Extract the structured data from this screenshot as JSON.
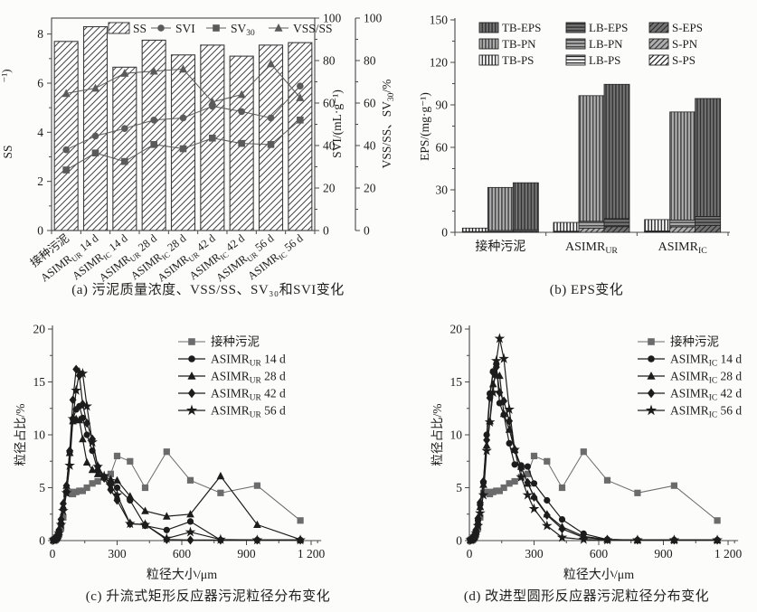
{
  "figure": {
    "captions": {
      "a": "(a) 污泥质量浓度、VSS/SS、SV₃₀和SVI变化",
      "b": "(b) EPS变化",
      "c": "(c) 升流式矩形反应器污泥粒径分布变化",
      "d": "(d) 改进型圆形反应器污泥粒径分布变化"
    },
    "colors": {
      "ink": "#1c1c1c",
      "frame": "#474747",
      "line_gray": "#5a5a5a",
      "seed_gray": "#6b6b6b"
    }
  },
  "chart_data": [
    {
      "id": "a",
      "type": "bar+line",
      "title": "(a) 污泥质量浓度、VSS/SS、SV₃₀和SVI变化",
      "ylabel_left_fragment_top": "⁻¹)",
      "ylabel_left_fragment": "SS",
      "axis_right1_label": "SVI/(mL·g⁻¹)",
      "axis_right2_label": [
        {
          "t": "VSS/SS、SV"
        },
        {
          "t": "30",
          "sub": true
        },
        {
          "t": "/%"
        }
      ],
      "ylim_left": [
        0,
        8.65
      ],
      "yticks_left": [
        0,
        2,
        4,
        6,
        8
      ],
      "ylim_right": [
        0,
        100
      ],
      "yticks_right": [
        0,
        20,
        40,
        60,
        80,
        100
      ],
      "categories": [
        [
          {
            "t": "接种污泥"
          }
        ],
        [
          {
            "t": "ASIMR"
          },
          {
            "t": "UR",
            "sub": true
          },
          {
            "t": " 14 d"
          }
        ],
        [
          {
            "t": "ASIMR"
          },
          {
            "t": "IC",
            "sub": true
          },
          {
            "t": " 14 d"
          }
        ],
        [
          {
            "t": "ASIMR"
          },
          {
            "t": "UR",
            "sub": true
          },
          {
            "t": " 28 d"
          }
        ],
        [
          {
            "t": "ASIMR"
          },
          {
            "t": "IC",
            "sub": true
          },
          {
            "t": " 28 d"
          }
        ],
        [
          {
            "t": "ASIMR"
          },
          {
            "t": "UR",
            "sub": true
          },
          {
            "t": " 42 d"
          }
        ],
        [
          {
            "t": "ASIMR"
          },
          {
            "t": "IC",
            "sub": true
          },
          {
            "t": " 42 d"
          }
        ],
        [
          {
            "t": "ASIMR"
          },
          {
            "t": "UR",
            "sub": true
          },
          {
            "t": " 56 d"
          }
        ],
        [
          {
            "t": "ASIMR"
          },
          {
            "t": "IC",
            "sub": true
          },
          {
            "t": " 56 d"
          }
        ]
      ],
      "bar_series": {
        "name": "SS",
        "unit": "g·L⁻¹",
        "values": [
          7.7,
          8.3,
          6.65,
          7.75,
          7.15,
          7.55,
          7.1,
          7.55,
          7.65
        ]
      },
      "line_series": [
        {
          "name": "SVI",
          "marker": "circle",
          "axis": "right",
          "values": [
            38,
            44.5,
            48,
            52,
            53,
            58.5,
            56,
            53,
            68
          ]
        },
        {
          "name": "SV30",
          "marker": "square",
          "axis": "right",
          "values": [
            28.5,
            36.5,
            32.5,
            40.5,
            38.5,
            43.5,
            41,
            40.5,
            52
          ]
        },
        {
          "name": "VSS/SS",
          "marker": "triangle",
          "axis": "right",
          "values": [
            64.5,
            67,
            74,
            75,
            76,
            60.5,
            64,
            78.5,
            62.5
          ]
        }
      ],
      "legend": [
        {
          "swatch": "hatch",
          "label": [
            {
              "t": "SS"
            }
          ]
        },
        {
          "swatch": "circle",
          "label": [
            {
              "t": "SVI"
            }
          ]
        },
        {
          "swatch": "square",
          "label": [
            {
              "t": "SV"
            },
            {
              "t": "30",
              "sub": true
            }
          ]
        },
        {
          "swatch": "triangle",
          "label": [
            {
              "t": "VSS/SS"
            }
          ]
        }
      ]
    },
    {
      "id": "b",
      "type": "stacked-bar",
      "title": "(b) EPS变化",
      "ylabel": "EPS/(mg·g⁻¹)",
      "ylim": [
        0,
        150
      ],
      "yticks": [
        0,
        30,
        60,
        90,
        120,
        150
      ],
      "legend_rows": [
        [
          "TB-EPS",
          "LB-EPS",
          "S-EPS"
        ],
        [
          "TB-PN",
          "LB-PN",
          "S-PN"
        ],
        [
          "TB-PS",
          "LB-PS",
          "S-PS"
        ]
      ],
      "categories": [
        [
          {
            "t": "接种污泥"
          }
        ],
        [
          {
            "t": "ASIMR"
          },
          {
            "t": "UR",
            "sub": true
          }
        ],
        [
          {
            "t": "ASIMR"
          },
          {
            "t": "IC",
            "sub": true
          }
        ]
      ],
      "groups": [
        {
          "bars": [
            {
              "family": "PS",
              "S": 0.2,
              "LB": 0.3,
              "TB": 2.5,
              "total": 3
            },
            {
              "family": "PN",
              "S": 0.5,
              "LB": 0.8,
              "TB": 30.4,
              "total": 31.7
            },
            {
              "family": "EPS",
              "S": 0.7,
              "LB": 1.1,
              "TB": 33.2,
              "total": 35
            }
          ]
        },
        {
          "bars": [
            {
              "family": "PS",
              "S": 0.3,
              "LB": 0.5,
              "TB": 6.2,
              "total": 7
            },
            {
              "family": "PN",
              "S": 3.0,
              "LB": 4.8,
              "TB": 88.7,
              "total": 96.5
            },
            {
              "family": "EPS",
              "S": 4.0,
              "LB": 5.7,
              "TB": 94.8,
              "total": 104.5
            }
          ]
        },
        {
          "bars": [
            {
              "family": "PS",
              "S": 0.4,
              "LB": 0.6,
              "TB": 8.0,
              "total": 9
            },
            {
              "family": "PN",
              "S": 3.8,
              "LB": 4.9,
              "TB": 76.3,
              "total": 85
            },
            {
              "family": "EPS",
              "S": 4.9,
              "LB": 6.3,
              "TB": 83.3,
              "total": 94.5
            }
          ]
        }
      ]
    },
    {
      "id": "c",
      "type": "line",
      "title": "(c) 升流式矩形反应器污泥粒径分布变化",
      "xlabel": "粒径大小/μm",
      "ylabel": "粒径占比/%",
      "ylim": [
        0,
        20
      ],
      "yticks": [
        0,
        5,
        10,
        15,
        20
      ],
      "xlim": [
        0,
        1230
      ],
      "xticks": [
        0,
        300,
        600,
        900,
        1200
      ],
      "xtick_labels": [
        "0",
        "300",
        "600",
        "900",
        "1 200"
      ],
      "x": [
        5,
        10,
        15,
        20,
        25,
        30,
        40,
        50,
        65,
        80,
        95,
        110,
        125,
        140,
        160,
        185,
        210,
        240,
        270,
        300,
        360,
        430,
        530,
        640,
        780,
        950,
        1150
      ],
      "series": [
        {
          "label": [
            {
              "t": "接种污泥"
            }
          ],
          "marker": "square",
          "color": "seed",
          "values": [
            0.05,
            0.1,
            0.15,
            0.25,
            0.4,
            0.6,
            1.2,
            2.2,
            4.5,
            4.6,
            4.4,
            4.6,
            4.7,
            4.7,
            5.0,
            5.4,
            5.6,
            6.0,
            6.3,
            8.0,
            7.5,
            5.0,
            8.4,
            5.7,
            4.5,
            5.2,
            1.9
          ]
        },
        {
          "label": [
            {
              "t": "ASIMR"
            },
            {
              "t": "UR",
              "sub": true
            },
            {
              "t": " 14 d"
            }
          ],
          "marker": "circle",
          "color": "ink",
          "values": [
            0.05,
            0.1,
            0.2,
            0.3,
            0.5,
            0.8,
            1.6,
            3.0,
            4.6,
            8.4,
            11.5,
            12.4,
            12.7,
            11.6,
            10.0,
            8.5,
            6.6,
            6.0,
            5.4,
            5.0,
            3.8,
            1.4,
            1.0,
            1.8,
            0.05,
            0.05,
            0.05
          ]
        },
        {
          "label": [
            {
              "t": "ASIMR"
            },
            {
              "t": "UR",
              "sub": true
            },
            {
              "t": " 28 d"
            }
          ],
          "marker": "triangle",
          "color": "ink",
          "values": [
            0.05,
            0.1,
            0.2,
            0.3,
            0.5,
            0.8,
            1.8,
            3.2,
            5.2,
            8.3,
            11.3,
            11.5,
            11.4,
            9.6,
            7.4,
            6.7,
            6.3,
            6.0,
            5.8,
            5.7,
            4.2,
            2.8,
            2.3,
            2.5,
            6.1,
            1.5,
            0.1
          ]
        },
        {
          "label": [
            {
              "t": "ASIMR"
            },
            {
              "t": "UR",
              "sub": true
            },
            {
              "t": " 42 d"
            }
          ],
          "marker": "diamond",
          "color": "ink",
          "values": [
            0.05,
            0.1,
            0.2,
            0.4,
            0.6,
            1.0,
            2.0,
            3.5,
            5.2,
            8.5,
            13.3,
            16.2,
            15.6,
            12.9,
            11.1,
            9.6,
            7.0,
            5.9,
            4.8,
            3.8,
            1.6,
            1.5,
            0.1,
            0.05,
            0.05,
            0.05,
            0.05
          ]
        },
        {
          "label": [
            {
              "t": "ASIMR"
            },
            {
              "t": "UR",
              "sub": true
            },
            {
              "t": " 56 d"
            }
          ],
          "marker": "star",
          "color": "ink",
          "values": [
            0.05,
            0.1,
            0.15,
            0.25,
            0.4,
            0.7,
            1.5,
            2.8,
            4.5,
            7.1,
            11.5,
            14.2,
            15.9,
            15.8,
            12.7,
            9.3,
            7.0,
            6.1,
            5.2,
            4.3,
            1.6,
            1.5,
            0.2,
            0.8,
            0.1,
            0.05,
            0.05
          ]
        }
      ]
    },
    {
      "id": "d",
      "type": "line",
      "title": "(d) 改进型圆形反应器污泥粒径分布变化",
      "xlabel": "粒径大小/μm",
      "ylabel": "粒径占比/%",
      "ylim": [
        0,
        20
      ],
      "yticks": [
        0,
        5,
        10,
        15,
        20
      ],
      "xlim": [
        0,
        1230
      ],
      "xticks": [
        0,
        300,
        600,
        900,
        1200
      ],
      "xtick_labels": [
        "0",
        "300",
        "600",
        "900",
        "1 200"
      ],
      "x": [
        5,
        10,
        15,
        20,
        25,
        30,
        40,
        50,
        65,
        80,
        95,
        110,
        125,
        140,
        160,
        185,
        210,
        240,
        270,
        300,
        360,
        430,
        530,
        640,
        780,
        950,
        1150
      ],
      "series": [
        {
          "label": [
            {
              "t": "接种污泥"
            }
          ],
          "marker": "square",
          "color": "seed",
          "values": [
            0.05,
            0.1,
            0.15,
            0.25,
            0.4,
            0.6,
            1.2,
            2.2,
            4.5,
            4.6,
            4.4,
            4.6,
            4.7,
            4.7,
            5.0,
            5.4,
            5.6,
            6.0,
            6.3,
            8.0,
            7.5,
            5.0,
            8.4,
            5.7,
            4.5,
            5.2,
            1.9
          ]
        },
        {
          "label": [
            {
              "t": "ASIMR"
            },
            {
              "t": "IC",
              "sub": true
            },
            {
              "t": " 14 d"
            }
          ],
          "marker": "circle",
          "color": "ink",
          "values": [
            0.05,
            0.1,
            0.2,
            0.3,
            0.5,
            0.9,
            1.9,
            3.4,
            5.5,
            10.0,
            13.9,
            16.0,
            16.7,
            13.0,
            11.9,
            9.2,
            7.2,
            7.1,
            7.0,
            5.4,
            3.8,
            2.0,
            0.65,
            0.1,
            0.05,
            0.05,
            0.05
          ]
        },
        {
          "label": [
            {
              "t": "ASIMR"
            },
            {
              "t": "IC",
              "sub": true
            },
            {
              "t": " 28 d"
            }
          ],
          "marker": "triangle",
          "color": "ink",
          "values": [
            0.05,
            0.1,
            0.2,
            0.3,
            0.5,
            0.9,
            1.8,
            3.2,
            5.3,
            9.0,
            11.3,
            14.8,
            15.7,
            15.6,
            12.0,
            10.5,
            8.6,
            7.0,
            5.4,
            4.2,
            2.5,
            1.3,
            0.4,
            0.1,
            0.05,
            0.05,
            0.05
          ]
        },
        {
          "label": [
            {
              "t": "ASIMR"
            },
            {
              "t": "IC",
              "sub": true
            },
            {
              "t": " 42 d"
            }
          ],
          "marker": "diamond",
          "color": "ink",
          "values": [
            0.05,
            0.1,
            0.2,
            0.4,
            0.6,
            1.0,
            2.1,
            3.6,
            5.6,
            9.5,
            13.5,
            15.9,
            16.4,
            14.0,
            13.2,
            11.3,
            8.6,
            6.9,
            5.5,
            4.1,
            2.4,
            1.1,
            0.3,
            0.1,
            0.05,
            0.05,
            0.05
          ]
        },
        {
          "label": [
            {
              "t": "ASIMR"
            },
            {
              "t": "IC",
              "sub": true
            },
            {
              "t": " 56 d"
            }
          ],
          "marker": "star",
          "color": "ink",
          "values": [
            0.05,
            0.1,
            0.15,
            0.25,
            0.4,
            0.7,
            1.4,
            2.6,
            4.3,
            8.5,
            11.2,
            14.0,
            17.0,
            19.1,
            17.2,
            12.4,
            8.6,
            6.0,
            4.3,
            3.0,
            1.4,
            0.3,
            0.1,
            0.05,
            0.05,
            0.05,
            0.05
          ]
        }
      ]
    }
  ]
}
